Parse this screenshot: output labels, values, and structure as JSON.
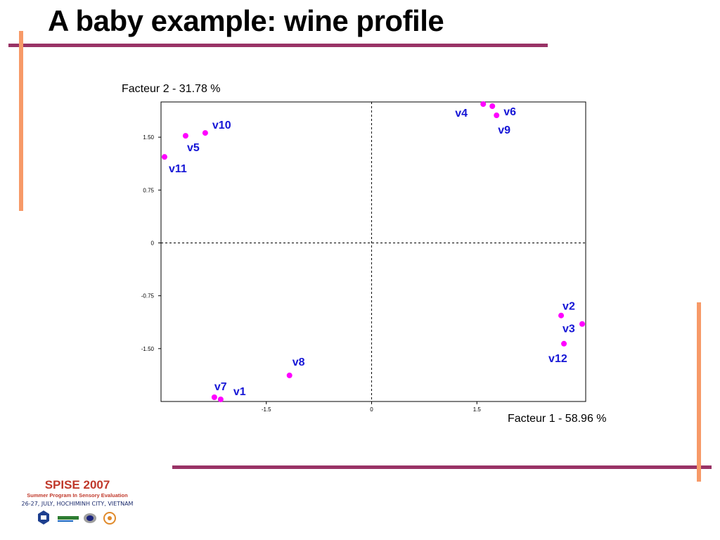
{
  "slide": {
    "title": "A baby example: wine profile"
  },
  "colors": {
    "rule": "#993366",
    "accent_bar": "#f79a68",
    "point": "#ff00ff",
    "label": "#1515d6"
  },
  "chart_data": {
    "type": "scatter",
    "xlabel": "Facteur 1  -  58.96 %",
    "ylabel": "Facteur 2  -  31.78 %",
    "xlim": [
      -3.0,
      3.05
    ],
    "ylim": [
      -2.25,
      2.0
    ],
    "x_ticks": [
      -1.5,
      0,
      1.5
    ],
    "x_tick_labels": [
      "-1.5",
      "0",
      "1.5"
    ],
    "y_ticks": [
      1.5,
      0.75,
      0,
      -0.75,
      -1.5
    ],
    "y_tick_labels": [
      "1.50",
      "0.75",
      "0",
      "-0.75",
      "-1.50"
    ],
    "reference_lines": "dashed lines at x=0 and y=0",
    "grid": false,
    "points": [
      {
        "label": "v1",
        "x": -2.15,
        "y": -2.22
      },
      {
        "label": "v2",
        "x": 2.7,
        "y": -1.03
      },
      {
        "label": "v3",
        "x": 3.0,
        "y": -1.15
      },
      {
        "label": "v4",
        "x": 1.59,
        "y": 1.97
      },
      {
        "label": "v5",
        "x": -2.65,
        "y": 1.52
      },
      {
        "label": "v6",
        "x": 1.72,
        "y": 1.94
      },
      {
        "label": "v7",
        "x": -2.24,
        "y": -2.19
      },
      {
        "label": "v8",
        "x": -1.17,
        "y": -1.88
      },
      {
        "label": "v9",
        "x": 1.78,
        "y": 1.81
      },
      {
        "label": "v10",
        "x": -2.37,
        "y": 1.56
      },
      {
        "label": "v11",
        "x": -2.95,
        "y": 1.22
      },
      {
        "label": "v12",
        "x": 2.74,
        "y": -1.43
      }
    ]
  },
  "footer": {
    "title": "SPISE 2007",
    "subtitle": "Summer Program In Sensory Evaluation",
    "location": "26-27, JULY, HOCHIMINH CITY, VIETNAM"
  }
}
